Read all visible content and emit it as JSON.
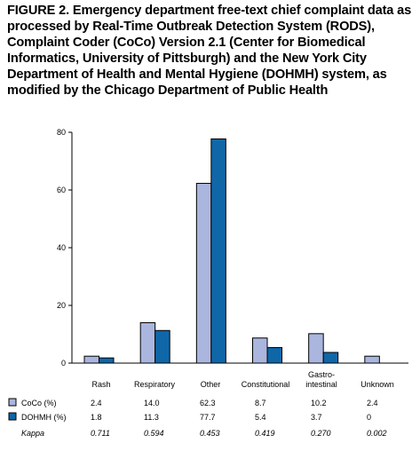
{
  "title": "FIGURE 2. Emergency department free-text chief complaint data as processed by Real-Time Outbreak Detection System (RODS), Complaint Coder (CoCo) Version 2.1 (Center for Biomedical Informatics, University of Pittsburgh) and the New York City Department of Health and Mental Hygiene (DOHMH) system, as modified by the Chicago Department of Public Health",
  "chart_data": {
    "type": "bar",
    "categories": [
      "Rash",
      "Respiratory",
      "Other",
      "Constitutional",
      "Gastro-intestinal",
      "Unknown"
    ],
    "category_label_lines": [
      [
        "Rash"
      ],
      [
        "Respiratory"
      ],
      [
        "Other"
      ],
      [
        "Constitutional"
      ],
      [
        "Gastro-",
        "intestinal"
      ],
      [
        "Unknown"
      ]
    ],
    "series": [
      {
        "name": "CoCo (%)",
        "color": "#aab6de",
        "values": [
          2.4,
          14.0,
          62.3,
          8.7,
          10.2,
          2.4
        ],
        "value_labels": [
          "2.4",
          "14.0",
          "62.3",
          "8.7",
          "10.2",
          "2.4"
        ]
      },
      {
        "name": "DOHMH (%)",
        "color": "#0f67a8",
        "values": [
          1.8,
          11.3,
          77.7,
          5.4,
          3.7,
          0
        ],
        "value_labels": [
          "1.8",
          "11.3",
          "77.7",
          "5.4",
          "3.7",
          "0"
        ]
      }
    ],
    "kappa": {
      "label": "Kappa",
      "values": [
        "0.711",
        "0.594",
        "0.453",
        "0.419",
        "0.270",
        "0.002"
      ]
    },
    "ylim": [
      0,
      80
    ],
    "yticks": [
      0,
      20,
      40,
      60,
      80
    ],
    "xlabel": "",
    "ylabel": "",
    "grid": false,
    "legend": "table-below"
  }
}
